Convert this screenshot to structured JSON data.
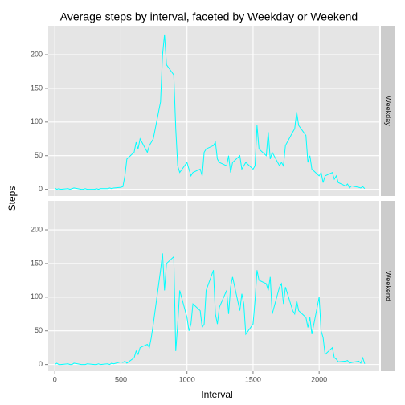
{
  "chart_data": {
    "type": "line",
    "title": "Average steps by interval, faceted by Weekday or Weekend",
    "xlabel": "Interval",
    "ylabel": "Steps",
    "x": [
      0,
      15,
      30,
      45,
      100,
      115,
      130,
      145,
      200,
      215,
      230,
      245,
      300,
      315,
      330,
      345,
      400,
      415,
      430,
      445,
      500,
      515,
      530,
      545,
      600,
      615,
      630,
      645,
      700,
      715,
      730,
      745,
      800,
      815,
      830,
      845,
      900,
      915,
      930,
      945,
      1000,
      1015,
      1030,
      1045,
      1100,
      1115,
      1130,
      1145,
      1200,
      1215,
      1230,
      1245,
      1300,
      1315,
      1330,
      1345,
      1400,
      1415,
      1430,
      1445,
      1500,
      1515,
      1530,
      1545,
      1600,
      1615,
      1630,
      1645,
      1700,
      1715,
      1730,
      1745,
      1800,
      1815,
      1830,
      1845,
      1900,
      1915,
      1930,
      1945,
      2000,
      2015,
      2030,
      2045,
      2100,
      2115,
      2130,
      2145,
      2200,
      2215,
      2230,
      2245,
      2300,
      2315,
      2330,
      2345
    ],
    "series": [
      {
        "name": "Weekday",
        "color": "#00ffff",
        "values": [
          2,
          0,
          1,
          0,
          1,
          0,
          1,
          2,
          0,
          0,
          1,
          0,
          0,
          1,
          0,
          1,
          1,
          2,
          1,
          2,
          3,
          4,
          20,
          45,
          55,
          70,
          60,
          75,
          55,
          65,
          70,
          75,
          130,
          200,
          230,
          185,
          170,
          90,
          35,
          25,
          40,
          30,
          20,
          25,
          30,
          20,
          55,
          60,
          65,
          70,
          45,
          40,
          35,
          50,
          25,
          40,
          50,
          30,
          35,
          40,
          30,
          35,
          95,
          60,
          50,
          85,
          45,
          55,
          35,
          40,
          35,
          65,
          85,
          90,
          115,
          95,
          80,
          40,
          50,
          30,
          20,
          25,
          10,
          20,
          25,
          15,
          20,
          10,
          5,
          8,
          2,
          5,
          3,
          2,
          4,
          1
        ]
      },
      {
        "name": "Weekend",
        "color": "#00ffff",
        "values": [
          0,
          2,
          0,
          0,
          1,
          0,
          0,
          2,
          0,
          0,
          0,
          1,
          0,
          0,
          1,
          0,
          1,
          0,
          2,
          1,
          4,
          3,
          5,
          2,
          10,
          20,
          15,
          25,
          30,
          25,
          40,
          60,
          140,
          165,
          110,
          150,
          160,
          20,
          60,
          110,
          70,
          50,
          60,
          90,
          80,
          55,
          60,
          110,
          140,
          75,
          60,
          85,
          110,
          75,
          115,
          130,
          80,
          105,
          90,
          45,
          60,
          95,
          140,
          125,
          120,
          110,
          130,
          75,
          115,
          120,
          90,
          115,
          80,
          75,
          95,
          80,
          70,
          55,
          70,
          45,
          100,
          50,
          40,
          15,
          25,
          10,
          8,
          4,
          5,
          6,
          2,
          3,
          5,
          2,
          10,
          1
        ]
      }
    ],
    "xlim": [
      -50,
      2455
    ],
    "ylim": [
      -10,
      243
    ],
    "xticks": [
      0,
      500,
      1000,
      1500,
      2000
    ],
    "yticks": [
      0,
      50,
      100,
      150,
      200
    ],
    "grid": true
  }
}
